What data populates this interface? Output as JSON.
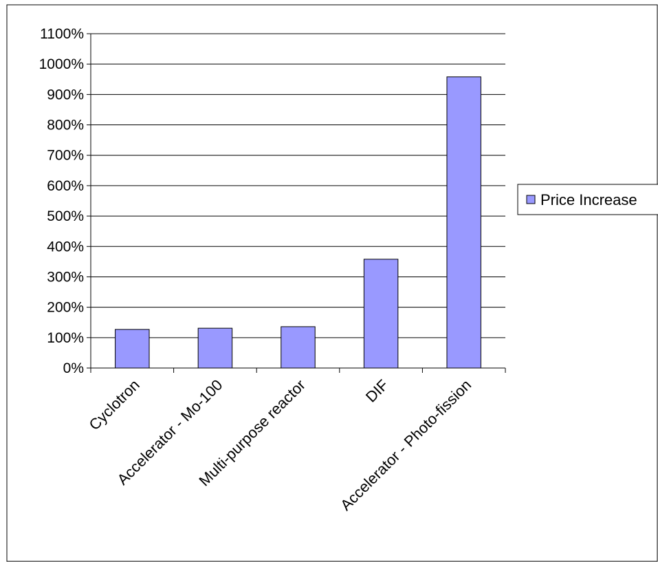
{
  "chart_data": {
    "type": "bar",
    "categories": [
      "Cyclotron",
      "Accelerator - Mo-100",
      "Multi-purpose reactor",
      "DIF",
      "Accelerator - Photo-fission"
    ],
    "series": [
      {
        "name": "Price Increase",
        "values": [
          127,
          131,
          136,
          358,
          958
        ]
      }
    ],
    "ylim": [
      0,
      1100
    ],
    "ytick_step": 100,
    "ytick_labels": [
      "0%",
      "100%",
      "200%",
      "300%",
      "400%",
      "500%",
      "600%",
      "700%",
      "800%",
      "900%",
      "1000%",
      "1100%"
    ],
    "grid": true,
    "legend_position": "right",
    "colors": {
      "bar_fill": "#9999ff",
      "bar_stroke": "#000000",
      "grid": "#000000"
    }
  }
}
